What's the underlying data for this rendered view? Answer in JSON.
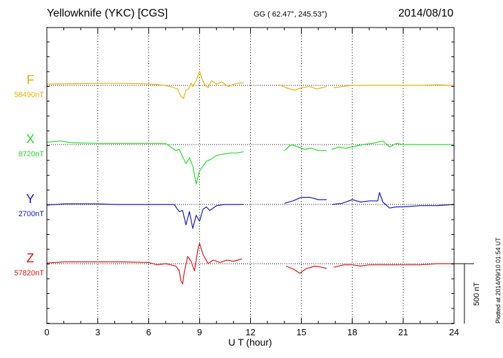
{
  "header": {
    "station": "Yellowknife (YKC)  [CGS]",
    "coords": "GG ( 62.47°, 245.53°)",
    "date": "2014/08/10"
  },
  "side_note": "Plotted at 2014/09/10 01:54  UT",
  "colors": {
    "F": "#f0b000",
    "X": "#22dd22",
    "Y": "#1414c8",
    "Z": "#e01010"
  },
  "chart_data": {
    "type": "line",
    "title": "Yellowknife (YKC)  [CGS]",
    "xlabel": "U T (hour)",
    "xlim": [
      0,
      24
    ],
    "xticks": [
      0,
      3,
      6,
      9,
      12,
      15,
      18,
      21,
      24
    ],
    "grid": true,
    "scale_label": "500 nT",
    "series": [
      {
        "name": "F",
        "baseline_label": "58490nT",
        "points": [
          [
            0,
            10
          ],
          [
            0.5,
            12
          ],
          [
            1.5,
            14
          ],
          [
            3,
            16
          ],
          [
            4.5,
            16
          ],
          [
            5.5,
            14
          ],
          [
            6.5,
            8
          ],
          [
            7.3,
            -10
          ],
          [
            7.7,
            -30
          ],
          [
            7.9,
            -90
          ],
          [
            8.05,
            -110
          ],
          [
            8.2,
            -40
          ],
          [
            8.35,
            -30
          ],
          [
            8.5,
            20
          ],
          [
            8.6,
            -10
          ],
          [
            8.8,
            40
          ],
          [
            9.0,
            120
          ],
          [
            9.15,
            50
          ],
          [
            9.3,
            10
          ],
          [
            9.5,
            -20
          ],
          [
            9.7,
            40
          ],
          [
            10,
            10
          ],
          [
            10.3,
            30
          ],
          [
            10.7,
            -10
          ],
          [
            11,
            10
          ],
          [
            11.4,
            20
          ],
          [
            11.6,
            20
          ],
          [
            null,
            null
          ],
          [
            13.7,
            5
          ],
          [
            14.1,
            -20
          ],
          [
            14.6,
            -40
          ],
          [
            15,
            -20
          ],
          [
            15.5,
            -10
          ],
          [
            15.9,
            -30
          ],
          [
            16.2,
            -20
          ],
          [
            16.5,
            -10
          ],
          [
            null,
            null
          ],
          [
            16.9,
            -20
          ],
          [
            17.4,
            -10
          ],
          [
            18,
            0
          ],
          [
            19,
            0
          ],
          [
            20,
            0
          ],
          [
            21,
            0
          ],
          [
            22,
            0
          ],
          [
            23,
            5
          ],
          [
            24,
            0
          ]
        ]
      },
      {
        "name": "X",
        "baseline_label": "8720nT",
        "points": [
          [
            0,
            20
          ],
          [
            0.8,
            30
          ],
          [
            1.5,
            15
          ],
          [
            3,
            10
          ],
          [
            4.5,
            10
          ],
          [
            6,
            10
          ],
          [
            7,
            10
          ],
          [
            7.6,
            -50
          ],
          [
            7.8,
            -40
          ],
          [
            8.0,
            -100
          ],
          [
            8.2,
            -160
          ],
          [
            8.4,
            -110
          ],
          [
            8.6,
            -180
          ],
          [
            8.8,
            -330
          ],
          [
            9.0,
            -220
          ],
          [
            9.2,
            -180
          ],
          [
            9.4,
            -140
          ],
          [
            9.7,
            -120
          ],
          [
            10,
            -90
          ],
          [
            10.4,
            -80
          ],
          [
            10.8,
            -70
          ],
          [
            11.2,
            -70
          ],
          [
            11.6,
            -60
          ],
          [
            null,
            null
          ],
          [
            14.0,
            -50
          ],
          [
            14.4,
            0
          ],
          [
            14.8,
            -20
          ],
          [
            15.2,
            -40
          ],
          [
            15.6,
            -30
          ],
          [
            16,
            -50
          ],
          [
            16.5,
            -50
          ],
          [
            null,
            null
          ],
          [
            16.8,
            -40
          ],
          [
            17.2,
            -20
          ],
          [
            17.6,
            -30
          ],
          [
            18,
            -20
          ],
          [
            18.6,
            0
          ],
          [
            19.2,
            10
          ],
          [
            19.8,
            30
          ],
          [
            20.2,
            -20
          ],
          [
            20.6,
            10
          ],
          [
            21,
            0
          ],
          [
            22,
            0
          ],
          [
            23,
            0
          ],
          [
            24,
            0
          ]
        ]
      },
      {
        "name": "Y",
        "baseline_label": "2700nT",
        "points": [
          [
            0,
            -5
          ],
          [
            1,
            5
          ],
          [
            2,
            5
          ],
          [
            3,
            5
          ],
          [
            4,
            0
          ],
          [
            5,
            0
          ],
          [
            6,
            0
          ],
          [
            7.5,
            0
          ],
          [
            7.8,
            -60
          ],
          [
            8.0,
            -50
          ],
          [
            8.2,
            -170
          ],
          [
            8.4,
            -60
          ],
          [
            8.6,
            -200
          ],
          [
            8.8,
            -90
          ],
          [
            9.0,
            -140
          ],
          [
            9.2,
            -40
          ],
          [
            9.4,
            -20
          ],
          [
            9.6,
            -50
          ],
          [
            10,
            -10
          ],
          [
            10.5,
            0
          ],
          [
            11,
            0
          ],
          [
            11.6,
            0
          ],
          [
            null,
            null
          ],
          [
            14,
            10
          ],
          [
            14.5,
            30
          ],
          [
            15,
            60
          ],
          [
            15.5,
            60
          ],
          [
            16,
            40
          ],
          [
            16.5,
            40
          ],
          [
            null,
            null
          ],
          [
            16.8,
            0
          ],
          [
            17.4,
            10
          ],
          [
            18,
            40
          ],
          [
            18.5,
            20
          ],
          [
            19,
            30
          ],
          [
            19.5,
            30
          ],
          [
            19.6,
            100
          ],
          [
            19.8,
            20
          ],
          [
            20.2,
            -30
          ],
          [
            20.6,
            -20
          ],
          [
            21,
            -20
          ],
          [
            22,
            -10
          ],
          [
            23,
            -10
          ],
          [
            24,
            0
          ]
        ]
      },
      {
        "name": "Z",
        "baseline_label": "57820nT",
        "points": [
          [
            0,
            5
          ],
          [
            1,
            15
          ],
          [
            2,
            15
          ],
          [
            3,
            15
          ],
          [
            4.5,
            15
          ],
          [
            6,
            10
          ],
          [
            6.5,
            -10
          ],
          [
            7,
            0
          ],
          [
            7.3,
            -10
          ],
          [
            7.6,
            -20
          ],
          [
            7.8,
            -60
          ],
          [
            7.9,
            -140
          ],
          [
            8.0,
            -170
          ],
          [
            8.1,
            -70
          ],
          [
            8.3,
            60
          ],
          [
            8.5,
            20
          ],
          [
            8.7,
            -60
          ],
          [
            8.9,
            120
          ],
          [
            9.0,
            170
          ],
          [
            9.2,
            80
          ],
          [
            9.5,
            0
          ],
          [
            9.8,
            30
          ],
          [
            10.2,
            10
          ],
          [
            10.6,
            30
          ],
          [
            11,
            20
          ],
          [
            11.5,
            40
          ],
          [
            null,
            null
          ],
          [
            14.1,
            -20
          ],
          [
            14.6,
            -50
          ],
          [
            14.9,
            -80
          ],
          [
            15.3,
            -40
          ],
          [
            15.8,
            -20
          ],
          [
            16.2,
            -30
          ],
          [
            16.5,
            -40
          ],
          [
            null,
            null
          ],
          [
            16.9,
            -30
          ],
          [
            17.5,
            -10
          ],
          [
            18,
            -10
          ],
          [
            18.5,
            -20
          ],
          [
            19,
            -10
          ],
          [
            20,
            -10
          ],
          [
            21,
            -10
          ],
          [
            22,
            -10
          ],
          [
            23,
            0
          ],
          [
            24,
            0
          ]
        ]
      }
    ]
  }
}
